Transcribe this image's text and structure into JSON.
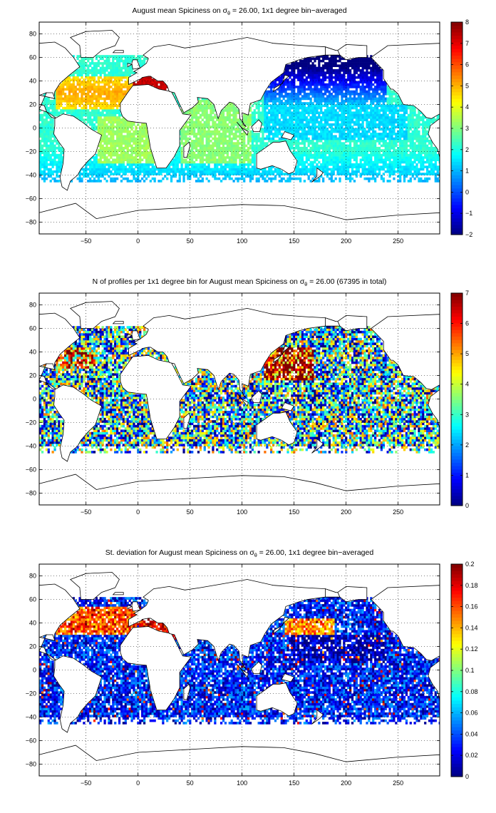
{
  "chart_data": [
    {
      "type": "heatmap",
      "title_main": "August mean Spiciness on σ",
      "title_sub": "θ",
      "title_tail": " = 26.00, 1x1 degree bin−averaged",
      "xlim": [
        -95,
        290
      ],
      "ylim": [
        -90,
        90
      ],
      "xticks": [
        -50,
        0,
        50,
        100,
        150,
        200,
        250
      ],
      "yticks": [
        80,
        60,
        40,
        20,
        0,
        -20,
        -40,
        -60,
        -80
      ],
      "grid": true,
      "grid_style": "dotted",
      "colormap": "jet",
      "clim": [
        -2,
        8
      ],
      "cticks": [
        8,
        7,
        6,
        5,
        4,
        3,
        2,
        1,
        0,
        -1,
        -2
      ],
      "field": "mean"
    },
    {
      "type": "heatmap",
      "title_main": "N of profiles per 1x1 degree bin for August mean Spiciness on σ",
      "title_sub": "θ",
      "title_tail": " = 26.00 (67395 in total)",
      "total_profiles": 67395,
      "xlim": [
        -95,
        290
      ],
      "ylim": [
        -90,
        90
      ],
      "xticks": [
        -50,
        0,
        50,
        100,
        150,
        200,
        250
      ],
      "yticks": [
        80,
        60,
        40,
        20,
        0,
        -20,
        -40,
        -60,
        -80
      ],
      "grid": true,
      "grid_style": "dotted",
      "colormap": "jet",
      "clim": [
        0,
        7
      ],
      "cticks": [
        7,
        6,
        5,
        4,
        3,
        2,
        1,
        0
      ],
      "field": "count"
    },
    {
      "type": "heatmap",
      "title_main": "St. deviation for August mean Spiciness on σ",
      "title_sub": "θ",
      "title_tail": " = 26.00, 1x1 degree bin−averaged",
      "xlim": [
        -95,
        290
      ],
      "ylim": [
        -90,
        90
      ],
      "xticks": [
        -50,
        0,
        50,
        100,
        150,
        200,
        250
      ],
      "yticks": [
        80,
        60,
        40,
        20,
        0,
        -20,
        -40,
        -60,
        -80
      ],
      "grid": true,
      "grid_style": "dotted",
      "colormap": "jet",
      "clim": [
        0,
        0.2
      ],
      "cticks": [
        0.2,
        0.18,
        0.16,
        0.14,
        0.12,
        0.1,
        0.08,
        0.06,
        0.04,
        0.02,
        0
      ],
      "field": "std"
    }
  ],
  "colors": {
    "axis": "#000000",
    "grid": "#000000",
    "background": "#ffffff"
  }
}
